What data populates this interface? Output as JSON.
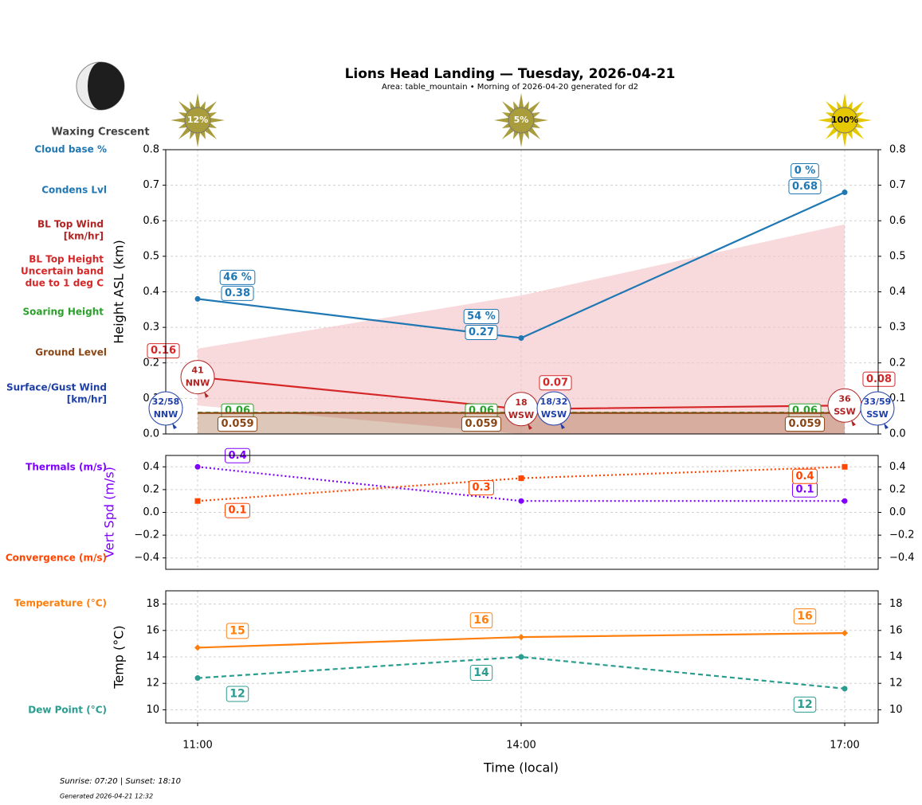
{
  "header": {
    "title": "Lions Head Landing — Tuesday, 2026-04-21",
    "subtitle": "Area: table_mountain • Morning of 2026-04-20 generated for d2"
  },
  "moon": {
    "phase": "Waxing Crescent"
  },
  "footer": {
    "sun_times": "Sunrise: 07:20 | Sunset: 18:10",
    "generated": "Generated 2026-04-21 12:32"
  },
  "chart_data": [
    {
      "type": "line",
      "y_label": "Height ASL (km)",
      "ylim": [
        0,
        0.8
      ],
      "yticks": [
        {
          "value": 0,
          "label": "0.0"
        },
        0.1,
        0.2,
        0.3,
        0.4,
        0.5,
        0.6,
        0.7,
        0.8
      ],
      "grid": true,
      "sun": {
        "labels": [
          "12%",
          "5%",
          "100%"
        ],
        "colors": [
          "#a89c3c",
          "#a89c3c",
          "#e6c800"
        ],
        "text_colors": [
          "#ffffff",
          "#ffffff",
          "#000000"
        ]
      },
      "cloud_base": {
        "name": "Cloud base %",
        "labels": [
          "46 %",
          "54 %",
          "0 %"
        ],
        "color": "#1f77b4"
      },
      "top_wind": {
        "name": [
          "BL Top Wind",
          "[km/hr]"
        ],
        "speeds": [
          "41",
          "18",
          "36"
        ],
        "directions": [
          "NNW",
          "WSW",
          "SSW"
        ],
        "color": "#b22222"
      },
      "surface_wind": {
        "name": [
          "Surface/Gust Wind",
          "[km/hr]"
        ],
        "speeds": [
          "32/58",
          "18/32",
          "33/59"
        ],
        "directions": [
          "NNW",
          "WSW",
          "SSW"
        ],
        "color": "#1f3fa8"
      },
      "band": {
        "name": [
          "Uncertain band",
          "due to 1 deg C"
        ],
        "lower": [
          0.08,
          0.0,
          0.0
        ],
        "upper": [
          0.24,
          0.39,
          0.59
        ],
        "color": "#f4c2c4"
      },
      "series": [
        {
          "name": "Condens Lvl",
          "color": "#1f77b4",
          "values": [
            0.38,
            0.27,
            0.68
          ],
          "linestyle": "solid",
          "marker": "circle"
        },
        {
          "name": "BL Top Height",
          "color": "#d62728",
          "values": [
            0.16,
            0.07,
            0.08
          ],
          "linestyle": "solid",
          "marker": "none"
        },
        {
          "name": "Soaring Height",
          "color": "#2ca02c",
          "values": [
            0.06,
            0.06,
            0.06
          ],
          "linestyle": "dashed",
          "marker": "none"
        },
        {
          "name": "Ground Level",
          "color": "#8b4513",
          "values": [
            0.059,
            0.059,
            0.059
          ],
          "linestyle": "solid",
          "marker": "none",
          "fill": true
        }
      ]
    },
    {
      "type": "line",
      "y_label": "Vert Spd (m/s)",
      "y_label_color": "#7f00ff",
      "ylim": [
        -0.5,
        0.5
      ],
      "yticks": [
        {
          "value": -0.4,
          "label": "−0.4"
        },
        {
          "value": -0.2,
          "label": "−0.2"
        },
        {
          "value": 0,
          "label": "0.0"
        },
        0.2,
        0.4
      ],
      "grid": true,
      "series": [
        {
          "name": "Thermals (m/s)",
          "color": "#7f00ff",
          "values": [
            0.4,
            0.1,
            0.1
          ],
          "linestyle": "dotted",
          "marker": "circle"
        },
        {
          "name": "Convergence (m/s)",
          "color": "#ff4500",
          "values": [
            0.1,
            0.3,
            0.4
          ],
          "linestyle": "dotted",
          "marker": "square"
        }
      ]
    },
    {
      "type": "line",
      "y_label": "Temp (°C)",
      "x_label": "Time (local)",
      "categories": [
        "11:00",
        "14:00",
        "17:00"
      ],
      "ylim": [
        9,
        19
      ],
      "yticks": [
        10,
        12,
        14,
        16,
        18
      ],
      "grid": true,
      "series": [
        {
          "name": "Temperature (°C)",
          "color": "#ff7f0e",
          "values": [
            14.7,
            15.5,
            15.8
          ],
          "value_labels": [
            "15",
            "16",
            "16"
          ],
          "linestyle": "solid",
          "marker": "diamond"
        },
        {
          "name": "Dew Point (°C)",
          "color": "#2a9d8f",
          "values": [
            12.4,
            14.0,
            11.6
          ],
          "value_labels": [
            "12",
            "14",
            "12"
          ],
          "linestyle": "dashed",
          "marker": "circle"
        }
      ]
    }
  ]
}
